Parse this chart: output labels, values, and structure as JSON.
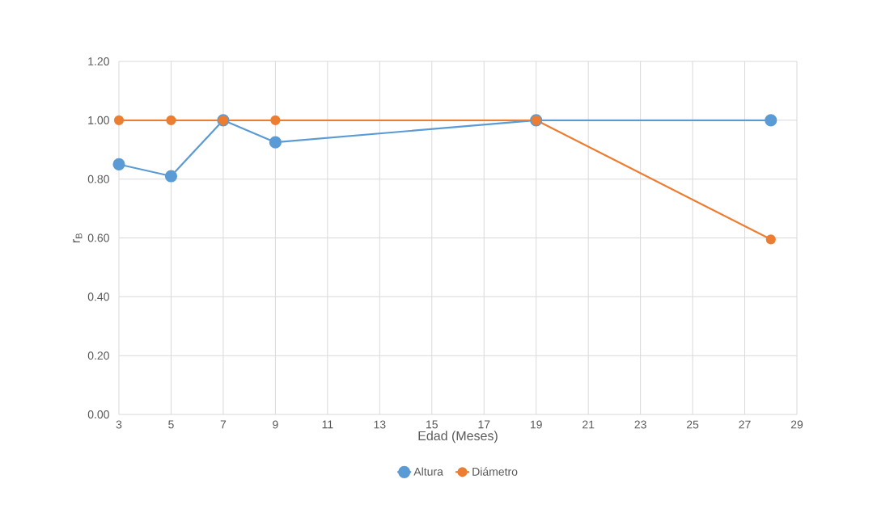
{
  "chart_data": {
    "type": "line",
    "xlabel": "Edad (Meses)",
    "ylabel": "r$_{B}$",
    "x": [
      3,
      5,
      7,
      9,
      19,
      28
    ],
    "series": [
      {
        "name": "Altura",
        "color": "#5b9bd5",
        "values": [
          0.85,
          0.81,
          1.0,
          0.925,
          1.0,
          1.0
        ]
      },
      {
        "name": "Diámetro",
        "color": "#ed7d31",
        "values": [
          1.0,
          1.0,
          1.0,
          1.0,
          1.0,
          0.595
        ]
      }
    ],
    "xlim": [
      3,
      29
    ],
    "xticks": [
      3,
      5,
      7,
      9,
      11,
      13,
      15,
      17,
      19,
      21,
      23,
      25,
      27,
      29
    ],
    "ylim": [
      0,
      1.2
    ],
    "yticks": [
      {
        "value": 0,
        "label": "0.00"
      },
      {
        "value": 0.2,
        "label": "0.20"
      },
      {
        "value": 0.4,
        "label": "0.40"
      },
      {
        "value": 0.6,
        "label": "0.60"
      },
      {
        "value": 0.8,
        "label": "0.80"
      },
      {
        "value": 1.0,
        "label": "1.00"
      },
      {
        "value": 1.2,
        "label": "1.20"
      }
    ],
    "grid": true,
    "legend": "bottom",
    "marker": "circle",
    "line_style": "solid"
  }
}
